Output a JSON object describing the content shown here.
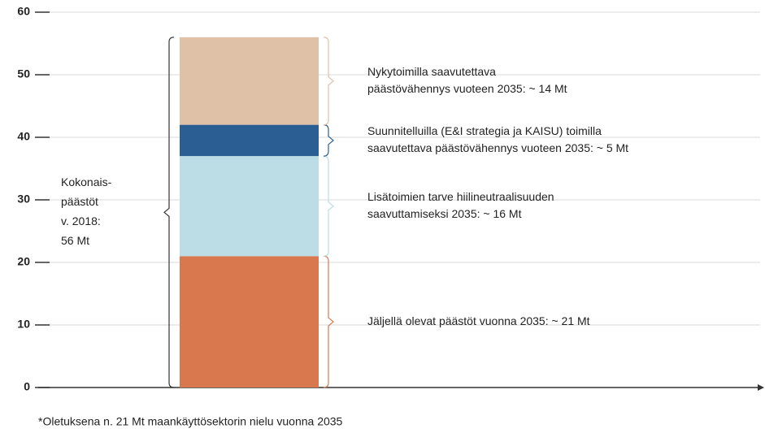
{
  "chart_data": {
    "type": "bar",
    "stacked": true,
    "categories": [
      null
    ],
    "series": [
      {
        "color": "#d9784f",
        "values": [
          21
        ]
      },
      {
        "color": "#bcdde6",
        "values": [
          16
        ]
      },
      {
        "color": "#2b5f94",
        "values": [
          5
        ]
      },
      {
        "color": "#dfc1a8",
        "values": [
          14
        ]
      }
    ],
    "annotations": [
      {
        "lines": [
          "Jäljellä olevat päästöt vuonna 2035: ~ 21 Mt"
        ]
      },
      {
        "lines": [
          "Lisätoimien tarve hiilineutraalisuuden",
          "saavuttamiseksi 2035: ~ 16 Mt"
        ]
      },
      {
        "lines": [
          "Suunnitelluilla (E&I strategia ja KAISU) toimilla",
          "saavutettava päästövähennys vuoteen 2035: ~ 5 Mt"
        ]
      },
      {
        "lines": [
          "Nykytoimilla saavutettava",
          "päästövähennys vuoteen 2035: ~ 14 Mt"
        ]
      }
    ],
    "total_label": [
      "Kokonais-",
      "päästöt",
      "v. 2018:",
      "56 Mt"
    ],
    "footnote": "*Oletuksena n. 21 Mt maankäyttösektorin nielu vuonna 2035",
    "ylim": [
      0,
      60
    ],
    "yticks": [
      0,
      10,
      20,
      30,
      40,
      50,
      60
    ],
    "grid": true
  }
}
